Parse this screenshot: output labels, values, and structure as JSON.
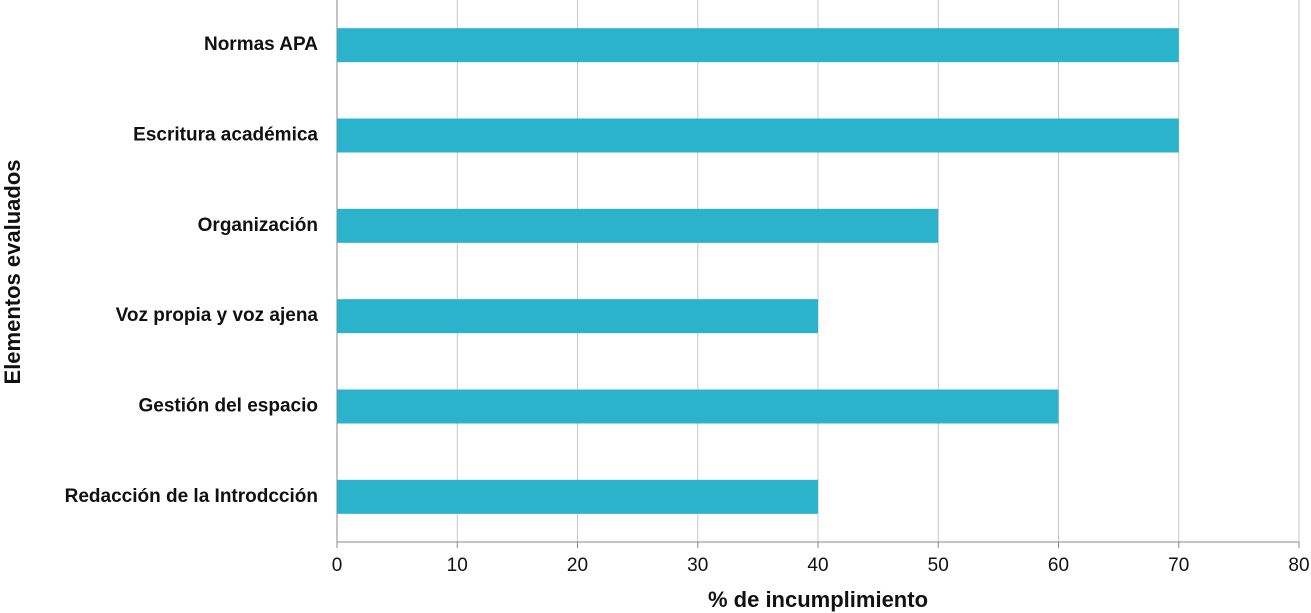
{
  "chart_data": {
    "type": "bar",
    "orientation": "horizontal",
    "xlabel": "% de incumplimiento",
    "ylabel": "Elementos evaluados",
    "categories": [
      "Normas APA",
      "Escritura académica",
      "Organización",
      "Voz propia y voz ajena",
      "Gestión del espacio",
      "Redacción de la Introdcción"
    ],
    "values": [
      70,
      70,
      50,
      40,
      60,
      40
    ],
    "color": "#2bb3cc",
    "xlim": [
      0,
      80
    ],
    "xticks": [
      0,
      10,
      20,
      30,
      40,
      50,
      60,
      70,
      80
    ],
    "grid": true
  }
}
